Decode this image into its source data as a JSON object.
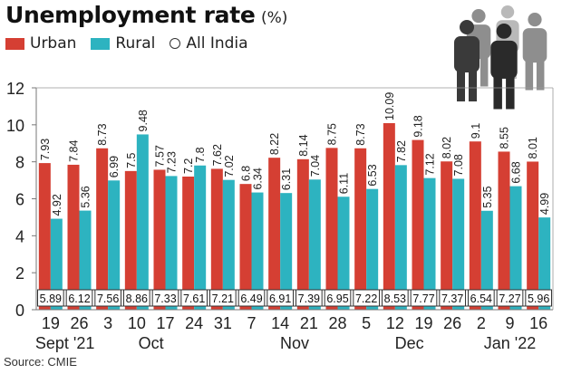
{
  "title": "Unemployment rate",
  "unit": "(%)",
  "source": "Source: CMIE",
  "colors": {
    "urban": "#d53f33",
    "rural": "#2db3c0",
    "all_india_box": "#333333"
  },
  "legend": [
    {
      "key": "urban",
      "label": "Urban",
      "marker": "square"
    },
    {
      "key": "rural",
      "label": "Rural",
      "marker": "square"
    },
    {
      "key": "all_india",
      "label": "All India",
      "marker": "circle"
    }
  ],
  "icon": "people-group-icon",
  "chart_data": {
    "type": "bar",
    "categories": [
      "19",
      "26",
      "3",
      "10",
      "17",
      "24",
      "31",
      "7",
      "14",
      "21",
      "28",
      "5",
      "12",
      "19",
      "26",
      "2",
      "9",
      "16"
    ],
    "month_labels": [
      {
        "label": "Sept '21",
        "start": 0,
        "end": 1
      },
      {
        "label": "Oct",
        "start": 2,
        "end": 5
      },
      {
        "label": "Nov",
        "start": 7,
        "end": 10
      },
      {
        "label": "Dec",
        "start": 11,
        "end": 14
      },
      {
        "label": "Jan '22",
        "start": 15,
        "end": 17
      }
    ],
    "series": [
      {
        "name": "Urban",
        "values": [
          7.93,
          7.84,
          8.73,
          7.5,
          7.57,
          7.2,
          7.62,
          6.8,
          8.22,
          8.14,
          8.75,
          8.73,
          10.09,
          9.18,
          8.02,
          9.1,
          8.55,
          8.01
        ]
      },
      {
        "name": "Rural",
        "values": [
          4.92,
          5.36,
          6.99,
          9.48,
          7.23,
          7.8,
          7.02,
          6.34,
          6.31,
          7.04,
          6.11,
          6.53,
          7.82,
          7.12,
          7.08,
          5.35,
          6.68,
          4.99
        ]
      },
      {
        "name": "All India",
        "values": [
          5.89,
          6.12,
          7.56,
          8.86,
          7.33,
          7.61,
          7.21,
          6.49,
          6.91,
          7.39,
          6.95,
          7.22,
          8.53,
          7.77,
          7.37,
          6.54,
          7.27,
          5.96
        ]
      }
    ],
    "ylim": [
      0,
      12
    ],
    "yticks": [
      0,
      2,
      4,
      6,
      8,
      10,
      12
    ],
    "grid": false,
    "legend_position": "top-left",
    "title": "Unemployment rate",
    "xlabel": "",
    "ylabel": ""
  }
}
